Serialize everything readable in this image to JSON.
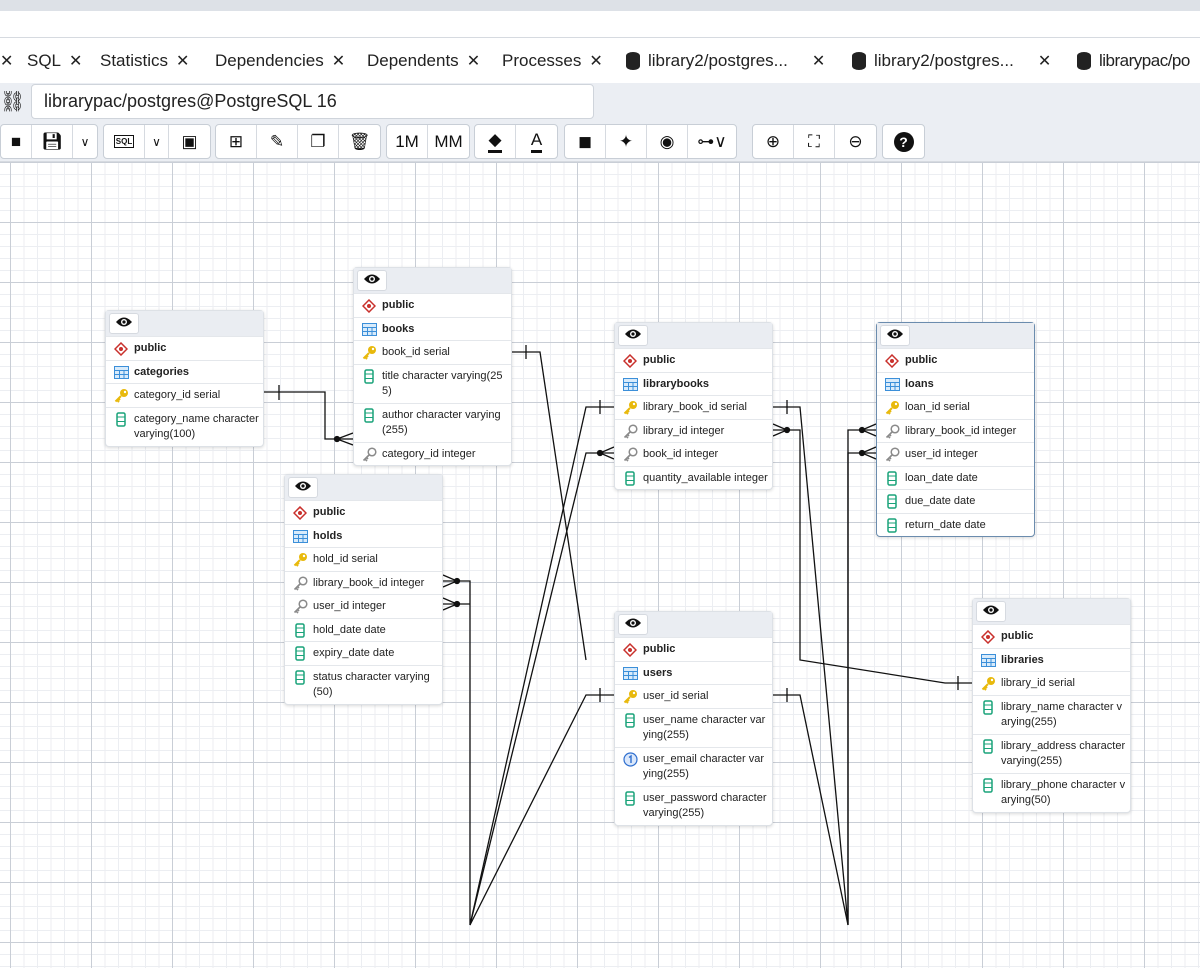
{
  "tabs": [
    {
      "label": "",
      "close": "✕"
    },
    {
      "label": "SQL",
      "close": "✕"
    },
    {
      "label": "Statistics",
      "close": "✕"
    },
    {
      "label": "Dependencies",
      "close": "✕"
    },
    {
      "label": "Dependents",
      "close": "✕"
    },
    {
      "label": "Processes",
      "close": "✕"
    },
    {
      "label": "library2/postgres...",
      "close": "✕",
      "icon": "database-icon"
    },
    {
      "label": "library2/postgres...",
      "close": "✕",
      "icon": "database-icon"
    },
    {
      "label": "librarypac/po",
      "close": "",
      "icon": "database-icon"
    }
  ],
  "connection": {
    "value": "librarypac/postgres@PostgreSQL 16"
  },
  "toolbar": {
    "one_to_many": "1M",
    "many_to_many": "MM",
    "sql_label": "SQL"
  },
  "colors": {
    "pk": "#e8b90c",
    "fk": "#8a8a8a",
    "column": "#1aa37a",
    "schema": "#c9302c",
    "table": "#3b8fd9",
    "unique": "#2f6fcf"
  },
  "tables": [
    {
      "id": "categories",
      "schema": "public",
      "name": "categories",
      "columns": [
        {
          "text": "category_id serial",
          "icon": "pk"
        },
        {
          "text": "category_name character varying(100)",
          "icon": "column"
        }
      ]
    },
    {
      "id": "books",
      "schema": "public",
      "name": "books",
      "columns": [
        {
          "text": "book_id serial",
          "icon": "pk"
        },
        {
          "text": "title character varying(255)",
          "icon": "column"
        },
        {
          "text": "author character varying(255)",
          "icon": "column"
        },
        {
          "text": "category_id integer",
          "icon": "fk"
        }
      ]
    },
    {
      "id": "librarybooks",
      "schema": "public",
      "name": "librarybooks",
      "columns": [
        {
          "text": "library_book_id serial",
          "icon": "pk"
        },
        {
          "text": "library_id integer",
          "icon": "fk"
        },
        {
          "text": "book_id integer",
          "icon": "fk"
        },
        {
          "text": "quantity_available integer",
          "icon": "column"
        }
      ]
    },
    {
      "id": "loans",
      "schema": "public",
      "name": "loans",
      "columns": [
        {
          "text": "loan_id serial",
          "icon": "pk"
        },
        {
          "text": "library_book_id integer",
          "icon": "fk"
        },
        {
          "text": "user_id integer",
          "icon": "fk"
        },
        {
          "text": "loan_date date",
          "icon": "column"
        },
        {
          "text": "due_date date",
          "icon": "column"
        },
        {
          "text": "return_date date",
          "icon": "column"
        }
      ]
    },
    {
      "id": "holds",
      "schema": "public",
      "name": "holds",
      "columns": [
        {
          "text": "hold_id serial",
          "icon": "pk"
        },
        {
          "text": "library_book_id integer",
          "icon": "fk"
        },
        {
          "text": "user_id integer",
          "icon": "fk"
        },
        {
          "text": "hold_date date",
          "icon": "column"
        },
        {
          "text": "expiry_date date",
          "icon": "column"
        },
        {
          "text": "status character varying(50)",
          "icon": "column"
        }
      ]
    },
    {
      "id": "users",
      "schema": "public",
      "name": "users",
      "columns": [
        {
          "text": "user_id serial",
          "icon": "pk"
        },
        {
          "text": "user_name character varying(255)",
          "icon": "column"
        },
        {
          "text": "user_email character varying(255)",
          "icon": "unique"
        },
        {
          "text": "user_password character varying(255)",
          "icon": "column"
        }
      ]
    },
    {
      "id": "libraries",
      "schema": "public",
      "name": "libraries",
      "columns": [
        {
          "text": "library_id serial",
          "icon": "pk"
        },
        {
          "text": "library_name character varying(255)",
          "icon": "column"
        },
        {
          "text": "library_address character varying(255)",
          "icon": "column"
        },
        {
          "text": "library_phone character varying(50)",
          "icon": "column"
        }
      ]
    }
  ],
  "relationships": [
    {
      "from": "categories.category_id",
      "to": "books.category_id"
    },
    {
      "from": "books.book_id",
      "to": "librarybooks.book_id"
    },
    {
      "from": "librarybooks.library_book_id",
      "to": "holds.library_book_id"
    },
    {
      "from": "users.user_id",
      "to": "holds.user_id"
    },
    {
      "from": "librarybooks.library_book_id",
      "to": "loans.library_book_id"
    },
    {
      "from": "users.user_id",
      "to": "loans.user_id"
    },
    {
      "from": "libraries.library_id",
      "to": "librarybooks.library_id"
    }
  ]
}
